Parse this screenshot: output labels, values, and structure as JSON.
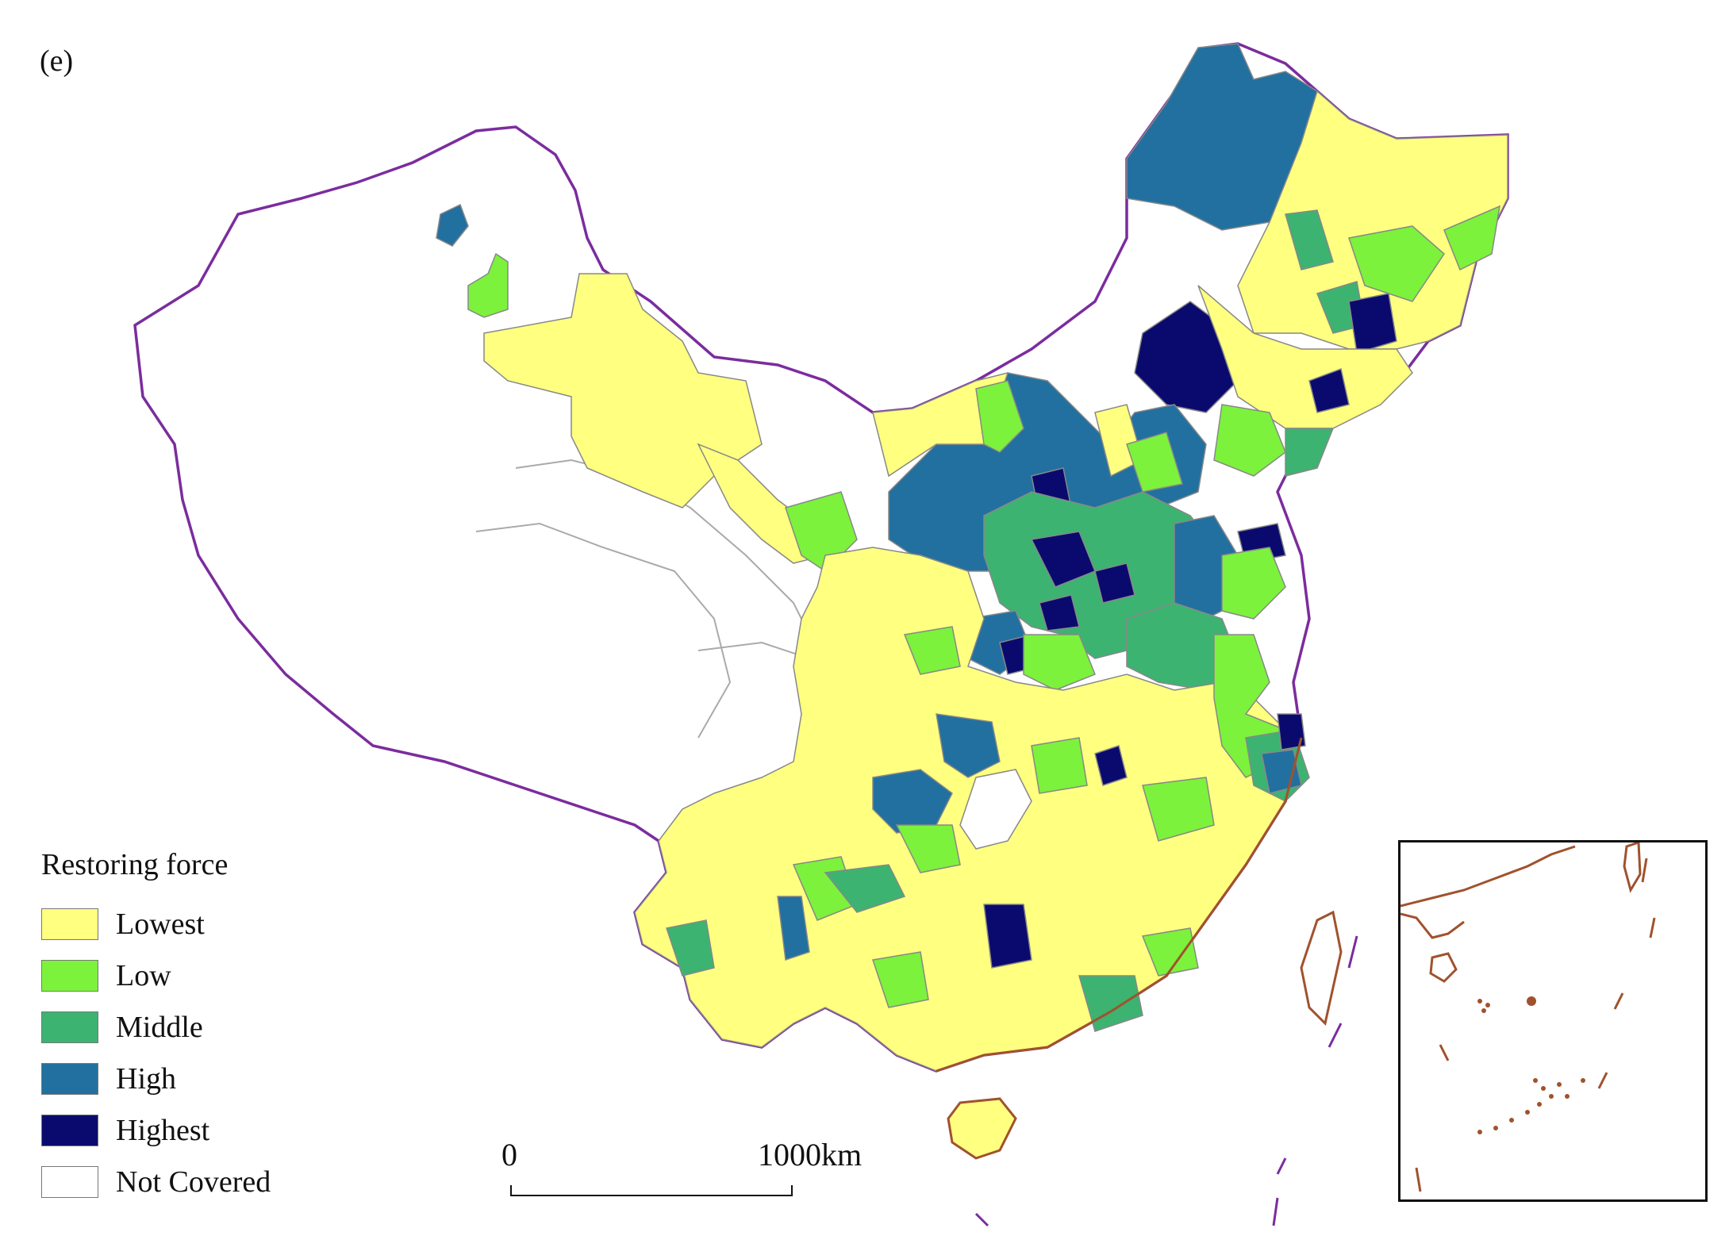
{
  "figure": {
    "panel_label": "(e)"
  },
  "legend": {
    "title": "Restoring force",
    "items": [
      {
        "label": "Lowest",
        "color": "#ffff80"
      },
      {
        "label": "Low",
        "color": "#7cf23c"
      },
      {
        "label": "Middle",
        "color": "#3cb371"
      },
      {
        "label": "High",
        "color": "#2270a0"
      },
      {
        "label": "Highest",
        "color": "#0a0a6e"
      },
      {
        "label": "Not Covered",
        "color": "#ffffff"
      }
    ]
  },
  "scale_bar": {
    "start_label": "0",
    "end_label": "1000",
    "unit": "km"
  },
  "colors": {
    "national_border": "#7b2c9e",
    "coastline": "#a0522d",
    "province_lines": "#aaaaaa"
  }
}
